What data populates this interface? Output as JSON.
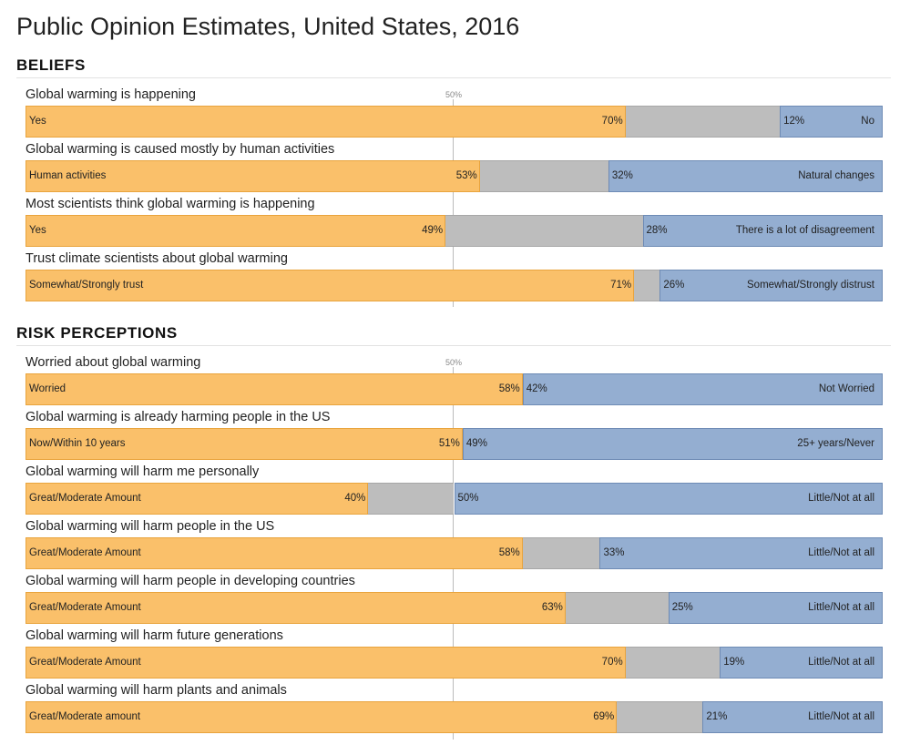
{
  "title": "Public Opinion Estimates, United States, 2016",
  "colors": {
    "agree": "#fac06a",
    "neutral": "#bdbdbd",
    "disagree": "#94aed1"
  },
  "chart_data": [
    {
      "type": "bar",
      "section": "BELIEFS",
      "midpoint_label": "50%",
      "xlim": [
        0,
        100
      ],
      "rows": [
        {
          "question": "Global warming is happening",
          "yes_label": "Yes",
          "yes": 70,
          "no": 12,
          "no_label": "No"
        },
        {
          "question": "Global warming is caused mostly by human activities",
          "yes_label": "Human activities",
          "yes": 53,
          "no": 32,
          "no_label": "Natural changes"
        },
        {
          "question": "Most scientists think global warming is happening",
          "yes_label": "Yes",
          "yes": 49,
          "no": 28,
          "no_label": "There is a lot of disagreement"
        },
        {
          "question": "Trust climate scientists about global warming",
          "yes_label": "Somewhat/Strongly trust",
          "yes": 71,
          "no": 26,
          "no_label": "Somewhat/Strongly distrust"
        }
      ]
    },
    {
      "type": "bar",
      "section": "RISK PERCEPTIONS",
      "midpoint_label": "50%",
      "xlim": [
        0,
        100
      ],
      "rows": [
        {
          "question": "Worried about global warming",
          "yes_label": "Worried",
          "yes": 58,
          "no": 42,
          "no_label": "Not Worried"
        },
        {
          "question": "Global warming is already harming people in the US",
          "yes_label": "Now/Within 10 years",
          "yes": 51,
          "no": 49,
          "no_label": "25+ years/Never"
        },
        {
          "question": "Global warming will harm me personally",
          "yes_label": "Great/Moderate Amount",
          "yes": 40,
          "no": 50,
          "no_label": "Little/Not at all"
        },
        {
          "question": "Global warming will harm people in the US",
          "yes_label": "Great/Moderate Amount",
          "yes": 58,
          "no": 33,
          "no_label": "Little/Not at all"
        },
        {
          "question": "Global warming will harm people in developing countries",
          "yes_label": "Great/Moderate Amount",
          "yes": 63,
          "no": 25,
          "no_label": "Little/Not at all"
        },
        {
          "question": "Global warming will harm future generations",
          "yes_label": "Great/Moderate Amount",
          "yes": 70,
          "no": 19,
          "no_label": "Little/Not at all"
        },
        {
          "question": "Global warming will harm plants and animals",
          "yes_label": "Great/Moderate amount",
          "yes": 69,
          "no": 21,
          "no_label": "Little/Not at all"
        }
      ]
    }
  ]
}
